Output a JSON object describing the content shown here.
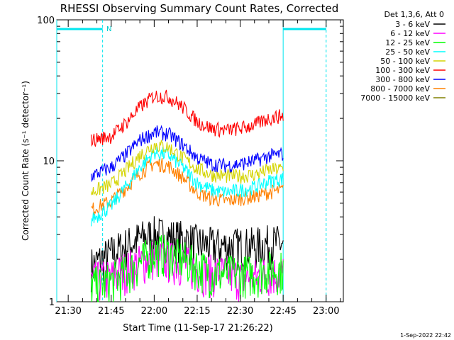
{
  "chart_data": {
    "type": "line",
    "title": "RHESSI Observing Summary Count Rates, Corrected",
    "xlabel": "Start Time (11-Sep-17 21:26:22)",
    "ylabel": "Corrected Count Rate (s⁻¹ detector⁻¹)",
    "y_scale": "log",
    "ylim": [
      1,
      100
    ],
    "y_ticks": [
      1,
      10,
      100
    ],
    "y_tick_labels": [
      "1",
      "10",
      "100"
    ],
    "xlim": [
      "21:26",
      "23:06"
    ],
    "x_ticks": [
      "21:30",
      "21:45",
      "22:00",
      "22:15",
      "22:30",
      "22:45",
      "23:00"
    ],
    "legend_title": "Det 1,3,6, Att 0",
    "legend_position": "top-right, outside plot",
    "marker_label": "N",
    "night_intervals": [
      [
        "21:26",
        "21:42"
      ],
      [
        "22:45",
        "23:00"
      ]
    ],
    "series": [
      {
        "name": "3 - 6 keV",
        "color": "#000000",
        "times": [
          "21:38",
          "21:45",
          "21:50",
          "21:55",
          "22:00",
          "22:05",
          "22:10",
          "22:15",
          "22:20",
          "22:25",
          "22:30",
          "22:35",
          "22:40",
          "22:45"
        ],
        "values": [
          1.8,
          2.2,
          2.5,
          2.8,
          3.0,
          2.9,
          2.8,
          2.6,
          2.5,
          2.5,
          2.5,
          2.5,
          2.6,
          2.6
        ]
      },
      {
        "name": "6 - 12 keV",
        "color": "#ff00ff",
        "times": [
          "21:38",
          "21:45",
          "21:50",
          "21:55",
          "22:00",
          "22:05",
          "22:10",
          "22:15",
          "22:20",
          "22:25",
          "22:30",
          "22:35",
          "22:40",
          "22:45"
        ],
        "values": [
          1.4,
          1.5,
          1.7,
          1.9,
          2.1,
          2.0,
          1.9,
          1.7,
          1.6,
          1.6,
          1.5,
          1.5,
          1.6,
          1.6
        ]
      },
      {
        "name": "12 - 25 keV",
        "color": "#00ff00",
        "times": [
          "21:38",
          "21:45",
          "21:50",
          "21:55",
          "22:00",
          "22:05",
          "22:10",
          "22:15",
          "22:20",
          "22:25",
          "22:30",
          "22:35",
          "22:40",
          "22:45"
        ],
        "values": [
          1.3,
          1.4,
          1.6,
          1.9,
          2.3,
          2.2,
          2.0,
          1.8,
          1.6,
          1.6,
          1.6,
          1.6,
          1.7,
          1.7
        ]
      },
      {
        "name": "25 - 50 keV",
        "color": "#00ffff",
        "times": [
          "21:38",
          "21:45",
          "21:50",
          "21:55",
          "22:00",
          "22:05",
          "22:10",
          "22:15",
          "22:20",
          "22:25",
          "22:30",
          "22:35",
          "22:40",
          "22:45"
        ],
        "values": [
          3.8,
          4.8,
          6.5,
          9.0,
          11.5,
          11.0,
          9.0,
          7.0,
          6.2,
          6.0,
          6.2,
          6.5,
          7.2,
          7.5
        ]
      },
      {
        "name": "50 - 100 keV",
        "color": "#d4d400",
        "times": [
          "21:38",
          "21:45",
          "21:50",
          "21:55",
          "22:00",
          "22:05",
          "22:10",
          "22:15",
          "22:20",
          "22:25",
          "22:30",
          "22:35",
          "22:40",
          "22:45"
        ],
        "values": [
          6.0,
          6.8,
          8.5,
          11.0,
          13.0,
          12.5,
          10.5,
          8.8,
          8.0,
          7.8,
          7.8,
          8.0,
          8.6,
          8.8
        ]
      },
      {
        "name": "100 - 300 keV",
        "color": "#ff0000",
        "times": [
          "21:38",
          "21:45",
          "21:50",
          "21:55",
          "22:00",
          "22:05",
          "22:10",
          "22:15",
          "22:20",
          "22:25",
          "22:30",
          "22:35",
          "22:40",
          "22:45"
        ],
        "values": [
          14.0,
          15.0,
          18.5,
          24.0,
          29.0,
          28.5,
          24.0,
          19.0,
          17.0,
          16.5,
          17.0,
          18.0,
          20.0,
          21.0
        ]
      },
      {
        "name": "300 - 800 keV",
        "color": "#0000ff",
        "times": [
          "21:38",
          "21:45",
          "21:50",
          "21:55",
          "22:00",
          "22:05",
          "22:10",
          "22:15",
          "22:20",
          "22:25",
          "22:30",
          "22:35",
          "22:40",
          "22:45"
        ],
        "values": [
          7.8,
          9.0,
          11.0,
          14.0,
          16.0,
          15.5,
          13.0,
          10.5,
          9.5,
          9.3,
          9.5,
          10.0,
          10.8,
          11.2
        ]
      },
      {
        "name": "800 - 7000 keV",
        "color": "#ff8000",
        "times": [
          "21:38",
          "21:45",
          "21:50",
          "21:55",
          "22:00",
          "22:05",
          "22:10",
          "22:15",
          "22:20",
          "22:25",
          "22:30",
          "22:35",
          "22:40",
          "22:45"
        ],
        "values": [
          4.5,
          5.2,
          6.4,
          8.2,
          9.6,
          9.2,
          7.6,
          6.0,
          5.4,
          5.2,
          5.4,
          5.6,
          6.0,
          6.2
        ]
      },
      {
        "name": "7000 - 15000 keV",
        "color": "#808000",
        "times": [],
        "values": []
      }
    ]
  },
  "footer_date": "1-Sep-2022 22:42"
}
